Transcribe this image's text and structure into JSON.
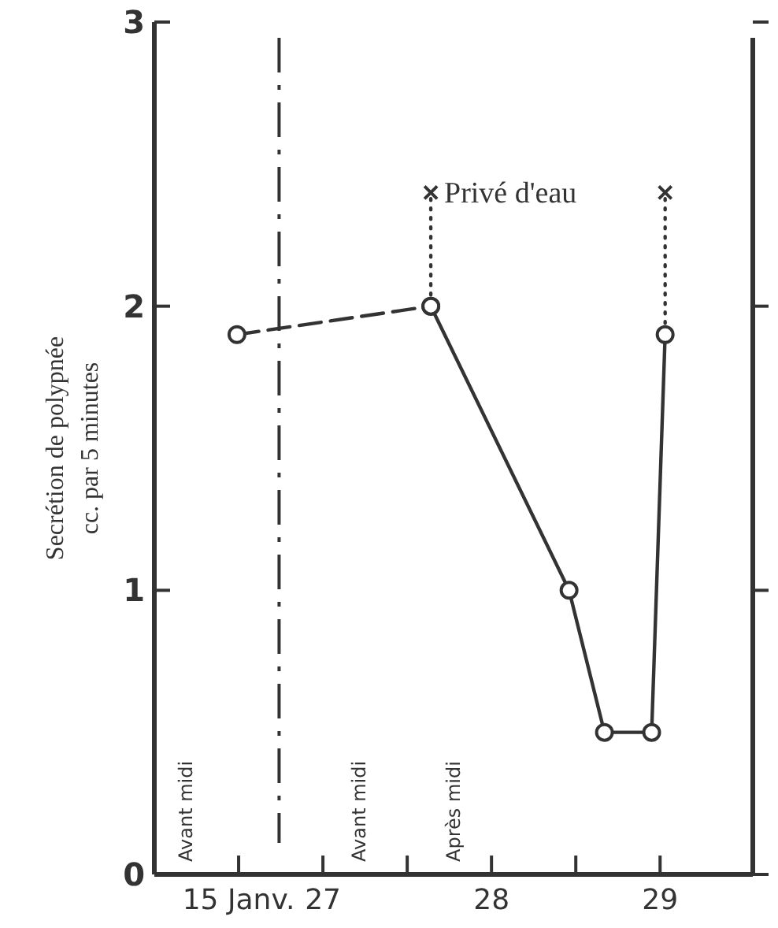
{
  "chart_data": {
    "type": "line",
    "ylabel": "Secrétion de polypnée\ncc. par 5 minutes",
    "xlim": [
      26,
      29.55
    ],
    "ylim": [
      0,
      3
    ],
    "yticks": [
      0,
      1,
      2,
      3
    ],
    "xticks": [
      {
        "value": 26.5,
        "label": "15 Janv."
      },
      27,
      {
        "value": 27.5,
        "label": null
      },
      28,
      {
        "value": 28.5,
        "label": null
      },
      29
    ],
    "series": [
      {
        "color": "#333333",
        "line_style": "dashed",
        "x": [
          26.49,
          27.64
        ],
        "values": [
          1.9,
          2.0
        ]
      },
      {
        "color": "#333333",
        "line_style": "solid",
        "x": [
          27.64,
          28.46,
          28.67,
          28.95,
          29.03
        ],
        "values": [
          2.0,
          1.0,
          0.5,
          0.5,
          1.9
        ]
      },
      {
        "color": "#333333",
        "line_style": "dotted",
        "marker": "cross",
        "x": [
          27.64,
          27.64
        ],
        "values": [
          2.04,
          2.4
        ]
      },
      {
        "color": "#333333",
        "line_style": "dotted",
        "marker": "cross",
        "x": [
          29.03,
          29.03
        ],
        "values": [
          1.94,
          2.4
        ]
      }
    ],
    "marker": "circle",
    "grid": false,
    "ref_lines": [
      {
        "axis": "x",
        "value": 26.74,
        "line_style": "dashed",
        "color": "#333333"
      }
    ],
    "annotations": [
      "Privé d'eau",
      "Avant midi",
      "Avant midi",
      "Après midi"
    ]
  }
}
